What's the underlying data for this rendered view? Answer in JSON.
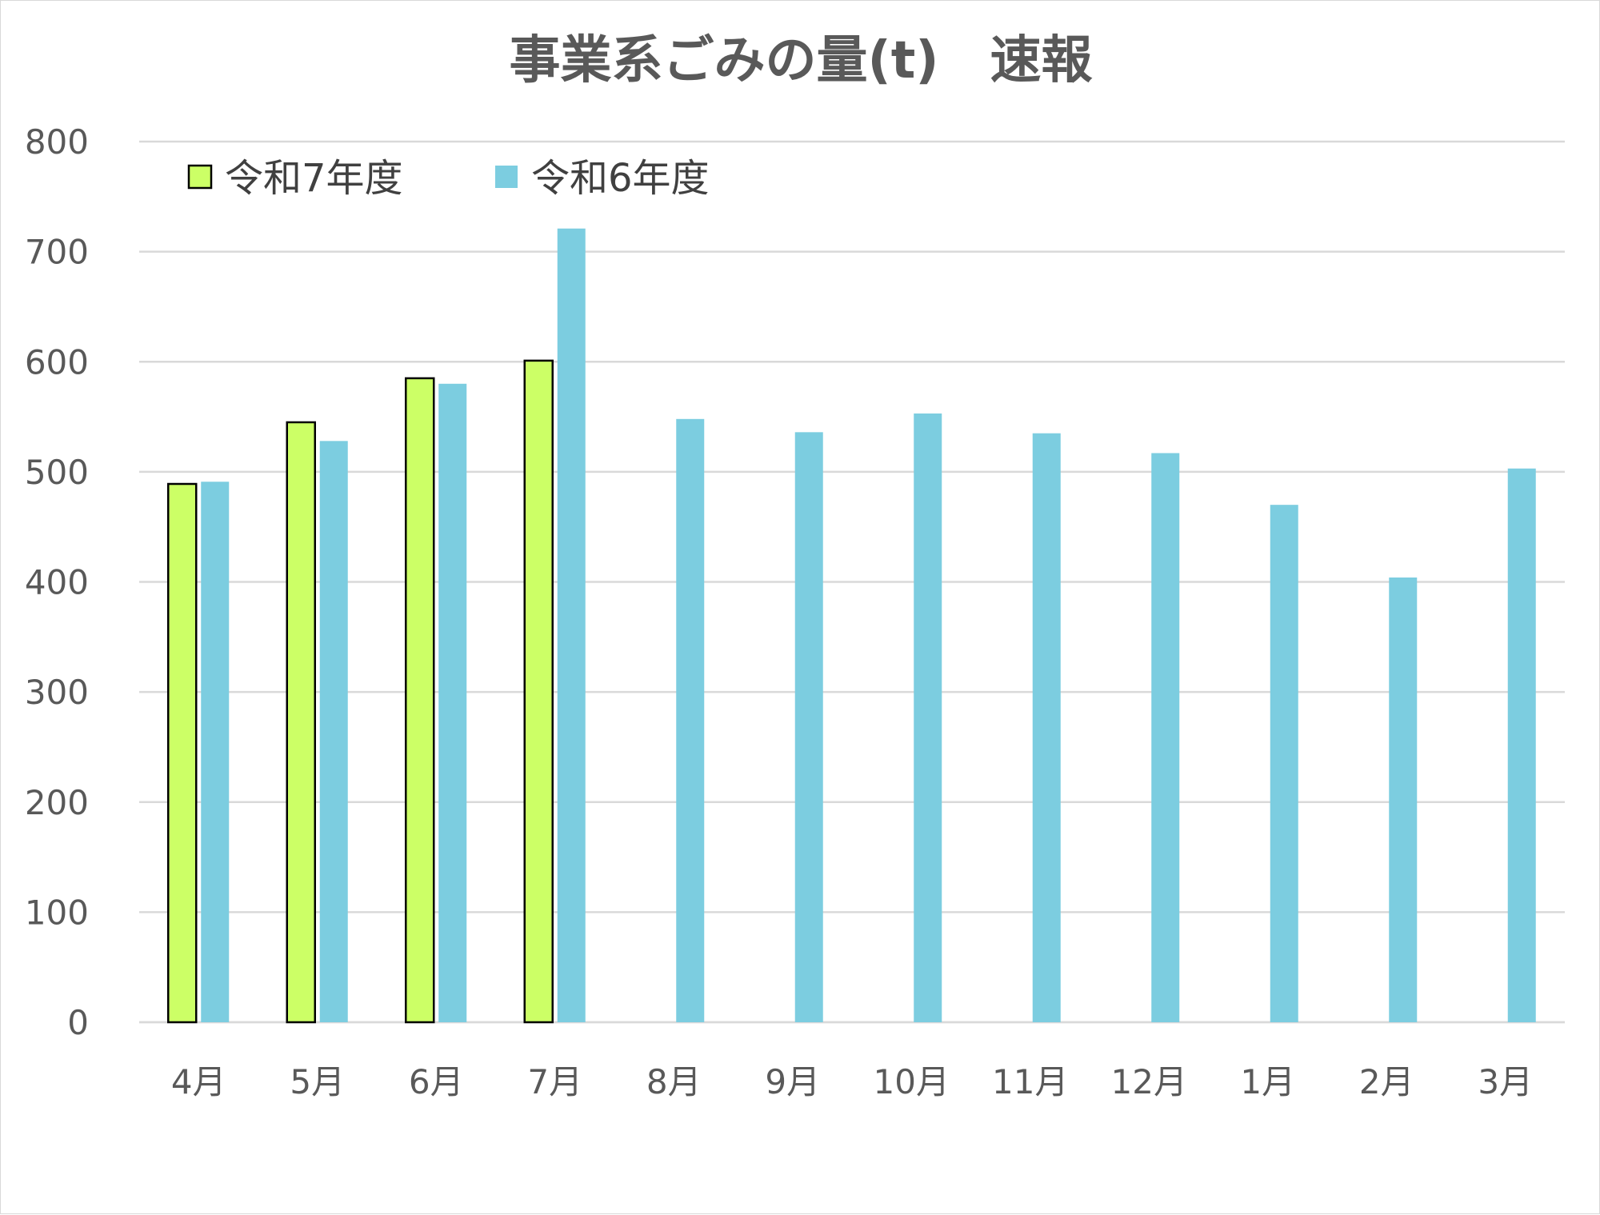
{
  "chart_data": {
    "type": "bar",
    "title": "事業系ごみの量(t)　速報",
    "xlabel": "",
    "ylabel": "",
    "ylim": [
      0,
      800
    ],
    "yticks": [
      0,
      100,
      200,
      300,
      400,
      500,
      600,
      700,
      800
    ],
    "categories": [
      "4月",
      "5月",
      "6月",
      "7月",
      "8月",
      "9月",
      "10月",
      "11月",
      "12月",
      "1月",
      "2月",
      "3月"
    ],
    "series": [
      {
        "name": "令和7年度",
        "color": "#ccff66",
        "stroke": "#000000",
        "values": [
          489,
          545,
          585,
          601,
          null,
          null,
          null,
          null,
          null,
          null,
          null,
          null
        ]
      },
      {
        "name": "令和6年度",
        "color": "#7ccde0",
        "stroke": "none",
        "values": [
          491,
          528,
          580,
          721,
          548,
          536,
          553,
          535,
          517,
          470,
          404,
          503
        ]
      }
    ],
    "grid": true,
    "legend_position": "top-left"
  }
}
